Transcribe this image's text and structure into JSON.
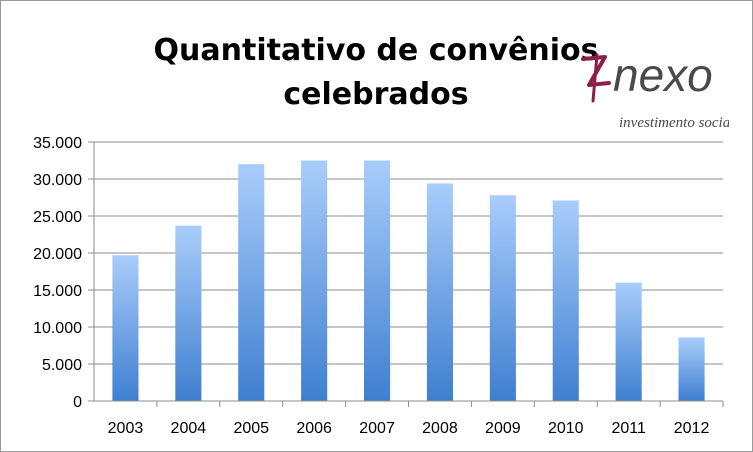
{
  "title": "Quantitativo de convênios celebrados",
  "logo": {
    "wordmark": "nexo",
    "tagline": "investimento social",
    "colors": {
      "mark": "#8b1f4a",
      "text": "#4a4a4a"
    }
  },
  "chart_data": {
    "type": "bar",
    "title": "Quantitativo de convênios celebrados",
    "xlabel": "",
    "ylabel": "",
    "categories": [
      "2003",
      "2004",
      "2005",
      "2006",
      "2007",
      "2008",
      "2009",
      "2010",
      "2011",
      "2012"
    ],
    "values": [
      19700,
      23700,
      32000,
      32500,
      32500,
      29400,
      27800,
      27100,
      16000,
      8600
    ],
    "ylim": [
      0,
      35000
    ],
    "yticks": [
      0,
      5000,
      10000,
      15000,
      20000,
      25000,
      30000,
      35000
    ],
    "ytick_labels": [
      "0",
      "5.000",
      "10.000",
      "15.000",
      "20.000",
      "25.000",
      "30.000",
      "35.000"
    ],
    "grid": true,
    "legend": "none",
    "colors": {
      "bar_top": "#a9cdfb",
      "bar_bottom": "#3f7fd0",
      "grid": "#8c8c8c"
    }
  }
}
